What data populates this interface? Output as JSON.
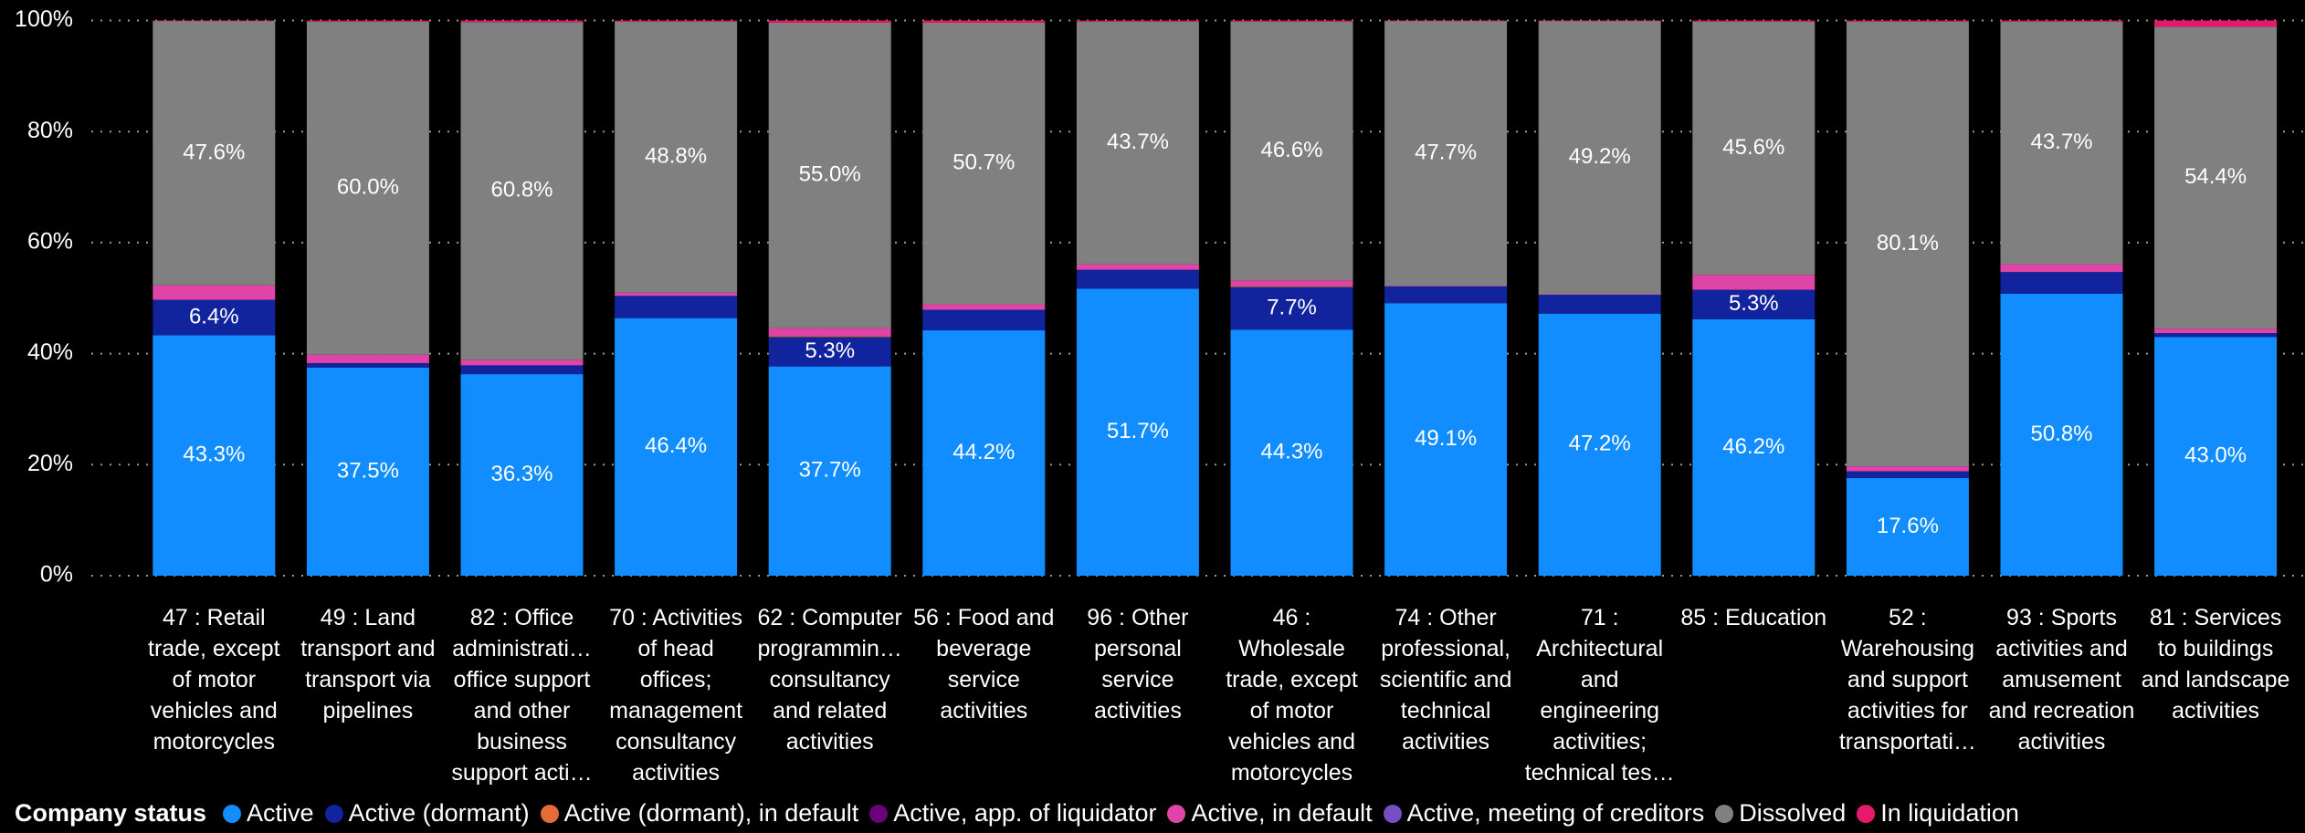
{
  "chart_data": {
    "type": "stacked_bar",
    "categories": [
      "47 : Retail trade, except of motor vehicles and motorcycles",
      "49 : Land transport and transport via pipelines",
      "82 : Office administrati… office support and other business support acti…",
      "70 : Activities of head offices; management consultancy activities",
      "62 : Computer programmin… consultancy and related activities",
      "56 : Food and beverage service activities",
      "96 : Other personal service activities",
      "46 : Wholesale trade, except of motor vehicles and motorcycles",
      "74 : Other professional, scientific and technical activities",
      "71 : Architectural and engineering activities; technical tes…",
      "85 : Education",
      "52 : Warehousing and support activities for transportati…",
      "93 : Sports activities and amusement and recreation activities",
      "81 : Services to buildings and landscape activities"
    ],
    "legend_title": "Company status",
    "series": [
      {
        "name": "Active",
        "color": "#118dff",
        "values": [
          43.3,
          37.5,
          36.3,
          46.4,
          37.7,
          44.2,
          51.7,
          44.3,
          49.1,
          47.2,
          46.2,
          17.6,
          50.8,
          43.0
        ],
        "value_labels": [
          "43.3%",
          "37.5%",
          "36.3%",
          "46.4%",
          "37.7%",
          "44.2%",
          "51.7%",
          "44.3%",
          "49.1%",
          "47.2%",
          "46.2%",
          "17.6%",
          "50.8%",
          "43.0%"
        ]
      },
      {
        "name": "Active (dormant)",
        "color": "#12239e",
        "values": [
          6.4,
          0.8,
          1.6,
          4.0,
          5.3,
          3.7,
          3.4,
          7.7,
          3.0,
          3.4,
          5.3,
          1.2,
          3.9,
          0.7
        ],
        "value_labels": [
          "6.4%",
          null,
          null,
          null,
          "5.3%",
          null,
          null,
          "7.7%",
          null,
          null,
          "5.3%",
          null,
          null,
          null
        ]
      },
      {
        "name": "Active (dormant), in default",
        "color": "#e66c37",
        "values": [
          0,
          0,
          0,
          0,
          0.2,
          0,
          0,
          0.2,
          0,
          0,
          0,
          0,
          0,
          0
        ]
      },
      {
        "name": "Active, app. of liquidator",
        "color": "#6b007b",
        "values": [
          0,
          0,
          0,
          0,
          0,
          0,
          0,
          0,
          0,
          0,
          0,
          0,
          0,
          0
        ]
      },
      {
        "name": "Active, in default",
        "color": "#e044a7",
        "values": [
          2.6,
          1.5,
          1.0,
          0.6,
          1.4,
          1.0,
          1.0,
          1.0,
          0.1,
          0.1,
          2.7,
          0.9,
          1.4,
          0.8
        ]
      },
      {
        "name": "Active, meeting of creditors",
        "color": "#744ec2",
        "values": [
          0,
          0,
          0,
          0,
          0,
          0,
          0,
          0,
          0,
          0,
          0,
          0,
          0,
          0
        ]
      },
      {
        "name": "Dissolved",
        "color": "#808080",
        "values": [
          47.6,
          60.0,
          60.8,
          48.8,
          55.0,
          50.7,
          43.7,
          46.6,
          47.7,
          49.2,
          45.6,
          80.1,
          43.7,
          54.4
        ],
        "value_labels": [
          "47.6%",
          "60.0%",
          "60.8%",
          "48.8%",
          "55.0%",
          "50.7%",
          "43.7%",
          "46.6%",
          "47.7%",
          "49.2%",
          "45.6%",
          "80.1%",
          "43.7%",
          "54.4%"
        ]
      },
      {
        "name": "In liquidation",
        "color": "#e8186e",
        "values": [
          0.1,
          0.2,
          0.3,
          0.2,
          0.4,
          0.4,
          0.2,
          0.2,
          0.1,
          0.1,
          0.2,
          0.2,
          0.2,
          1.1
        ]
      }
    ],
    "ylim": [
      0,
      100
    ],
    "yticks": [
      {
        "value": 0,
        "label": "0%"
      },
      {
        "value": 20,
        "label": "20%"
      },
      {
        "value": 40,
        "label": "40%"
      },
      {
        "value": 60,
        "label": "60%"
      },
      {
        "value": 80,
        "label": "80%"
      },
      {
        "value": 100,
        "label": "100%"
      }
    ],
    "grid": true
  }
}
